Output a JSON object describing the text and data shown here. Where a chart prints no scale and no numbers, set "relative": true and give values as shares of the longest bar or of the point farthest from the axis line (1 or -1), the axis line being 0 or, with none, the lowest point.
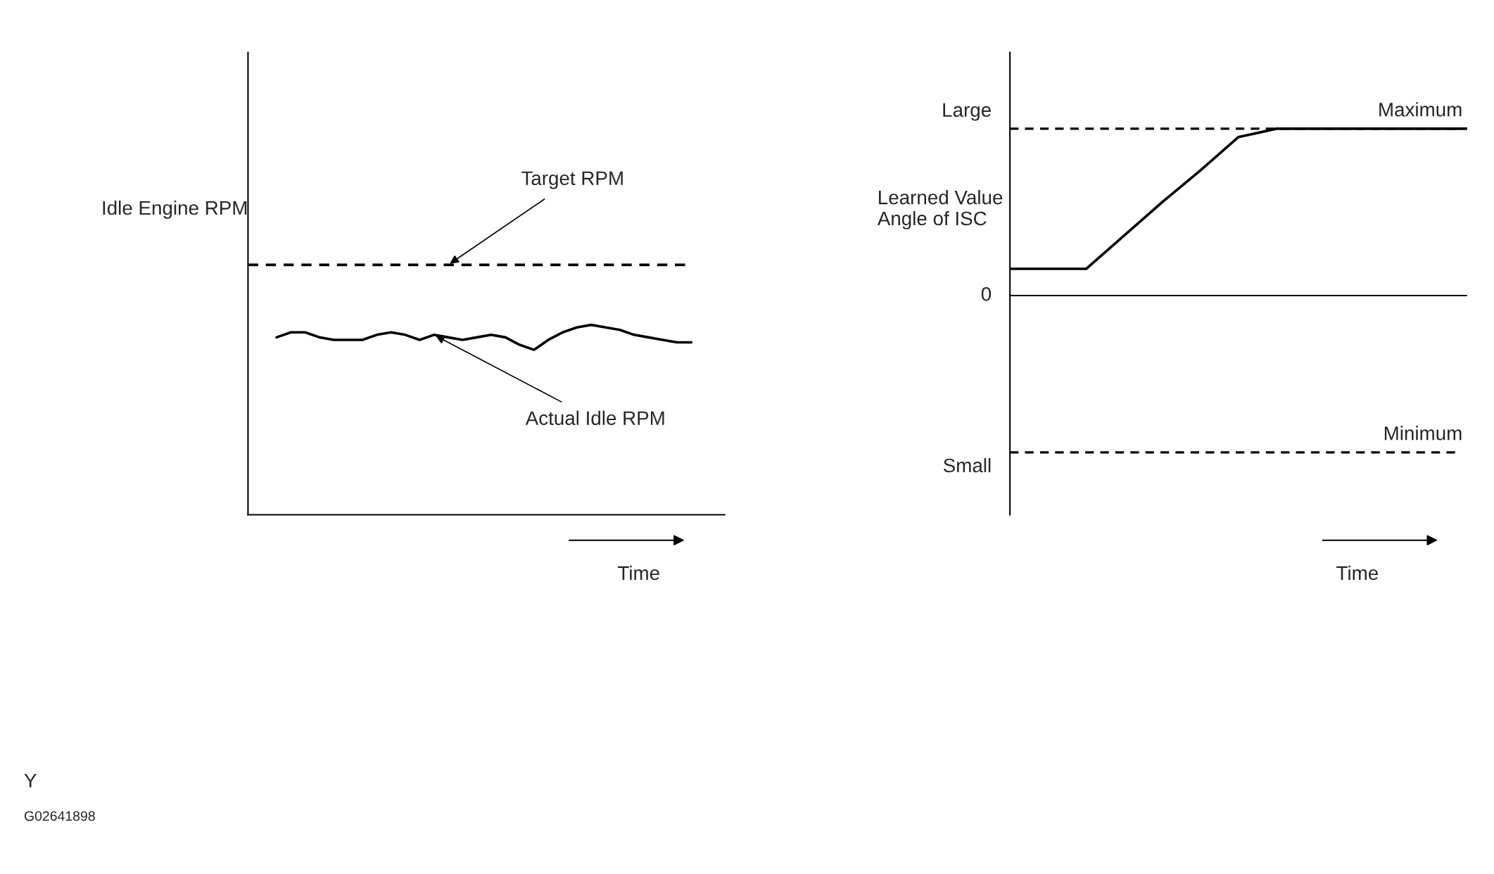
{
  "chart_data": [
    {
      "type": "line",
      "relative": true,
      "ylabel": "Idle Engine RPM",
      "xlabel": "Time",
      "categories": [
        null,
        null,
        null,
        null,
        null,
        null,
        null,
        null,
        null,
        null,
        null,
        null,
        null,
        null,
        null,
        null,
        null,
        null,
        null,
        null,
        null,
        null,
        null,
        null,
        null,
        null,
        null,
        null,
        null,
        null,
        null,
        null
      ],
      "series": [
        {
          "name": "Target RPM",
          "color": "#000000",
          "line_style": "dashed",
          "values": [
            1,
            1,
            1,
            1,
            1,
            1,
            1,
            1,
            1,
            1,
            1,
            1,
            1,
            1,
            1,
            1,
            1,
            1,
            1,
            1,
            1,
            1,
            1,
            1,
            1,
            1,
            1,
            1,
            1,
            1,
            1,
            1
          ]
        },
        {
          "name": "Actual Idle RPM",
          "color": "#000000",
          "line_style": "solid",
          "values": [
            null,
            null,
            0.71,
            0.73,
            0.73,
            0.71,
            0.7,
            0.7,
            0.7,
            0.72,
            0.73,
            0.72,
            0.7,
            0.72,
            0.71,
            0.7,
            0.71,
            0.72,
            0.71,
            0.68,
            0.66,
            0.7,
            0.73,
            0.75,
            0.76,
            0.75,
            0.74,
            0.72,
            0.71,
            0.7,
            0.69,
            0.69
          ]
        }
      ],
      "annotations": [
        "Y",
        "G02641898"
      ]
    },
    {
      "type": "line",
      "relative": true,
      "ylabel": "Learned Value\nAngle of ISC",
      "xlabel": "Time",
      "categories": [
        null,
        null,
        null,
        null,
        null,
        null,
        null,
        null,
        null,
        null,
        null,
        null,
        null
      ],
      "series": [
        {
          "color": "#000000",
          "line_style": "solid",
          "values": [
            0.16,
            0.16,
            0.16,
            0.36,
            0.56,
            0.75,
            0.95,
            1,
            1,
            1,
            1,
            1,
            1
          ]
        }
      ],
      "ref_lines": [
        {
          "axis": "y",
          "value": 1,
          "label": "Maximum",
          "line_style": "dashed",
          "color": "#000000"
        },
        {
          "axis": "y",
          "value": -0.94,
          "label": "Minimum",
          "line_style": "dashed",
          "color": "#000000"
        }
      ],
      "annotations": [
        "Large",
        "0",
        "Small"
      ]
    }
  ]
}
